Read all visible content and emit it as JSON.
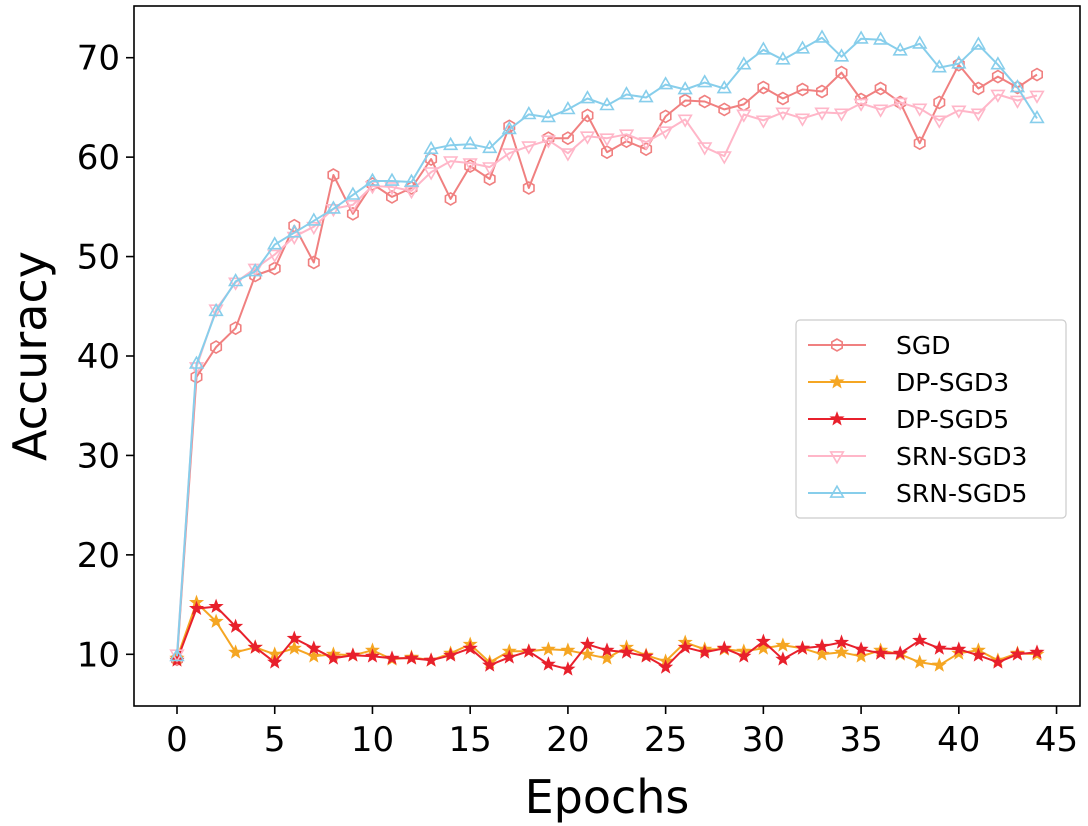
{
  "chart_data": {
    "type": "line",
    "title": "",
    "xlabel": "Epochs",
    "ylabel": "Accuracy",
    "xlim": [
      -2.2,
      46.2
    ],
    "ylim": [
      4.8,
      75.2
    ],
    "xticks": [
      0,
      5,
      10,
      15,
      20,
      25,
      30,
      35,
      40,
      45
    ],
    "yticks": [
      10,
      20,
      30,
      40,
      50,
      60,
      70
    ],
    "grid": false,
    "legend_position": "center-right",
    "x": [
      0,
      1,
      2,
      3,
      4,
      5,
      6,
      7,
      8,
      9,
      10,
      11,
      12,
      13,
      14,
      15,
      16,
      17,
      18,
      19,
      20,
      21,
      22,
      23,
      24,
      25,
      26,
      27,
      28,
      29,
      30,
      31,
      32,
      33,
      34,
      35,
      36,
      37,
      38,
      39,
      40,
      41,
      42,
      43,
      44
    ],
    "series": [
      {
        "name": "SGD",
        "color": "#f08080",
        "marker": "hexagon",
        "values": [
          9.5,
          37.9,
          40.9,
          42.8,
          48.1,
          48.8,
          53.1,
          49.4,
          58.2,
          54.3,
          57.3,
          56.0,
          56.9,
          59.8,
          55.8,
          59.1,
          57.8,
          63.1,
          56.9,
          61.9,
          61.9,
          64.2,
          60.5,
          61.6,
          60.8,
          64.1,
          65.7,
          65.6,
          64.8,
          65.3,
          67.0,
          65.9,
          66.8,
          66.6,
          68.5,
          65.8,
          66.9,
          65.5,
          61.4,
          65.5,
          69.3,
          66.9,
          68.1,
          67.0,
          68.3
        ]
      },
      {
        "name": "DP-SGD3",
        "color": "#f5a623",
        "marker": "star",
        "values": [
          9.6,
          15.2,
          13.3,
          10.2,
          10.7,
          10.0,
          10.6,
          9.8,
          10.0,
          9.9,
          10.4,
          9.5,
          9.7,
          9.4,
          10.1,
          11.0,
          9.2,
          10.3,
          10.3,
          10.5,
          10.4,
          10.0,
          9.6,
          10.7,
          9.9,
          9.3,
          11.2,
          10.5,
          10.5,
          10.3,
          10.6,
          10.9,
          10.6,
          10.0,
          10.2,
          9.8,
          10.4,
          10.0,
          9.2,
          8.9,
          10.1,
          10.4,
          9.4,
          10.1,
          10.0
        ]
      },
      {
        "name": "DP-SGD5",
        "color": "#e8202c",
        "marker": "star",
        "values": [
          9.4,
          14.6,
          14.8,
          12.8,
          10.7,
          9.2,
          11.6,
          10.6,
          9.6,
          9.9,
          9.8,
          9.6,
          9.6,
          9.4,
          9.9,
          10.6,
          8.9,
          9.7,
          10.3,
          9.0,
          8.5,
          11.0,
          10.4,
          10.2,
          9.8,
          8.7,
          10.7,
          10.2,
          10.6,
          9.8,
          11.3,
          9.5,
          10.6,
          10.8,
          11.2,
          10.5,
          10.1,
          10.1,
          11.4,
          10.6,
          10.5,
          9.9,
          9.2,
          10.0,
          10.2
        ]
      },
      {
        "name": "SRN-SGD3",
        "color": "#ffb6c8",
        "marker": "triangle-down",
        "values": [
          10.0,
          38.9,
          44.7,
          47.4,
          48.8,
          50.2,
          52.0,
          53.0,
          54.8,
          55.2,
          57.1,
          57.0,
          56.6,
          58.5,
          59.6,
          59.4,
          59.0,
          60.4,
          61.1,
          61.7,
          60.4,
          62.1,
          61.9,
          62.3,
          61.5,
          62.6,
          63.8,
          61.0,
          60.1,
          64.3,
          63.7,
          64.5,
          63.9,
          64.5,
          64.4,
          65.4,
          64.8,
          65.5,
          64.9,
          63.7,
          64.7,
          64.4,
          66.3,
          65.7,
          66.2
        ]
      },
      {
        "name": "SRN-SGD5",
        "color": "#87ceeb",
        "marker": "triangle-up",
        "values": [
          9.8,
          39.2,
          44.5,
          47.5,
          48.5,
          51.2,
          52.4,
          53.6,
          54.8,
          56.2,
          57.6,
          57.6,
          57.5,
          60.8,
          61.2,
          61.3,
          60.9,
          62.8,
          64.3,
          64.0,
          64.8,
          65.9,
          65.2,
          66.3,
          66.0,
          67.3,
          66.8,
          67.5,
          66.9,
          69.3,
          70.8,
          69.8,
          70.9,
          72.0,
          70.1,
          71.9,
          71.8,
          70.7,
          71.4,
          69.0,
          69.4,
          71.3,
          69.3,
          67.0,
          63.9
        ]
      }
    ]
  }
}
